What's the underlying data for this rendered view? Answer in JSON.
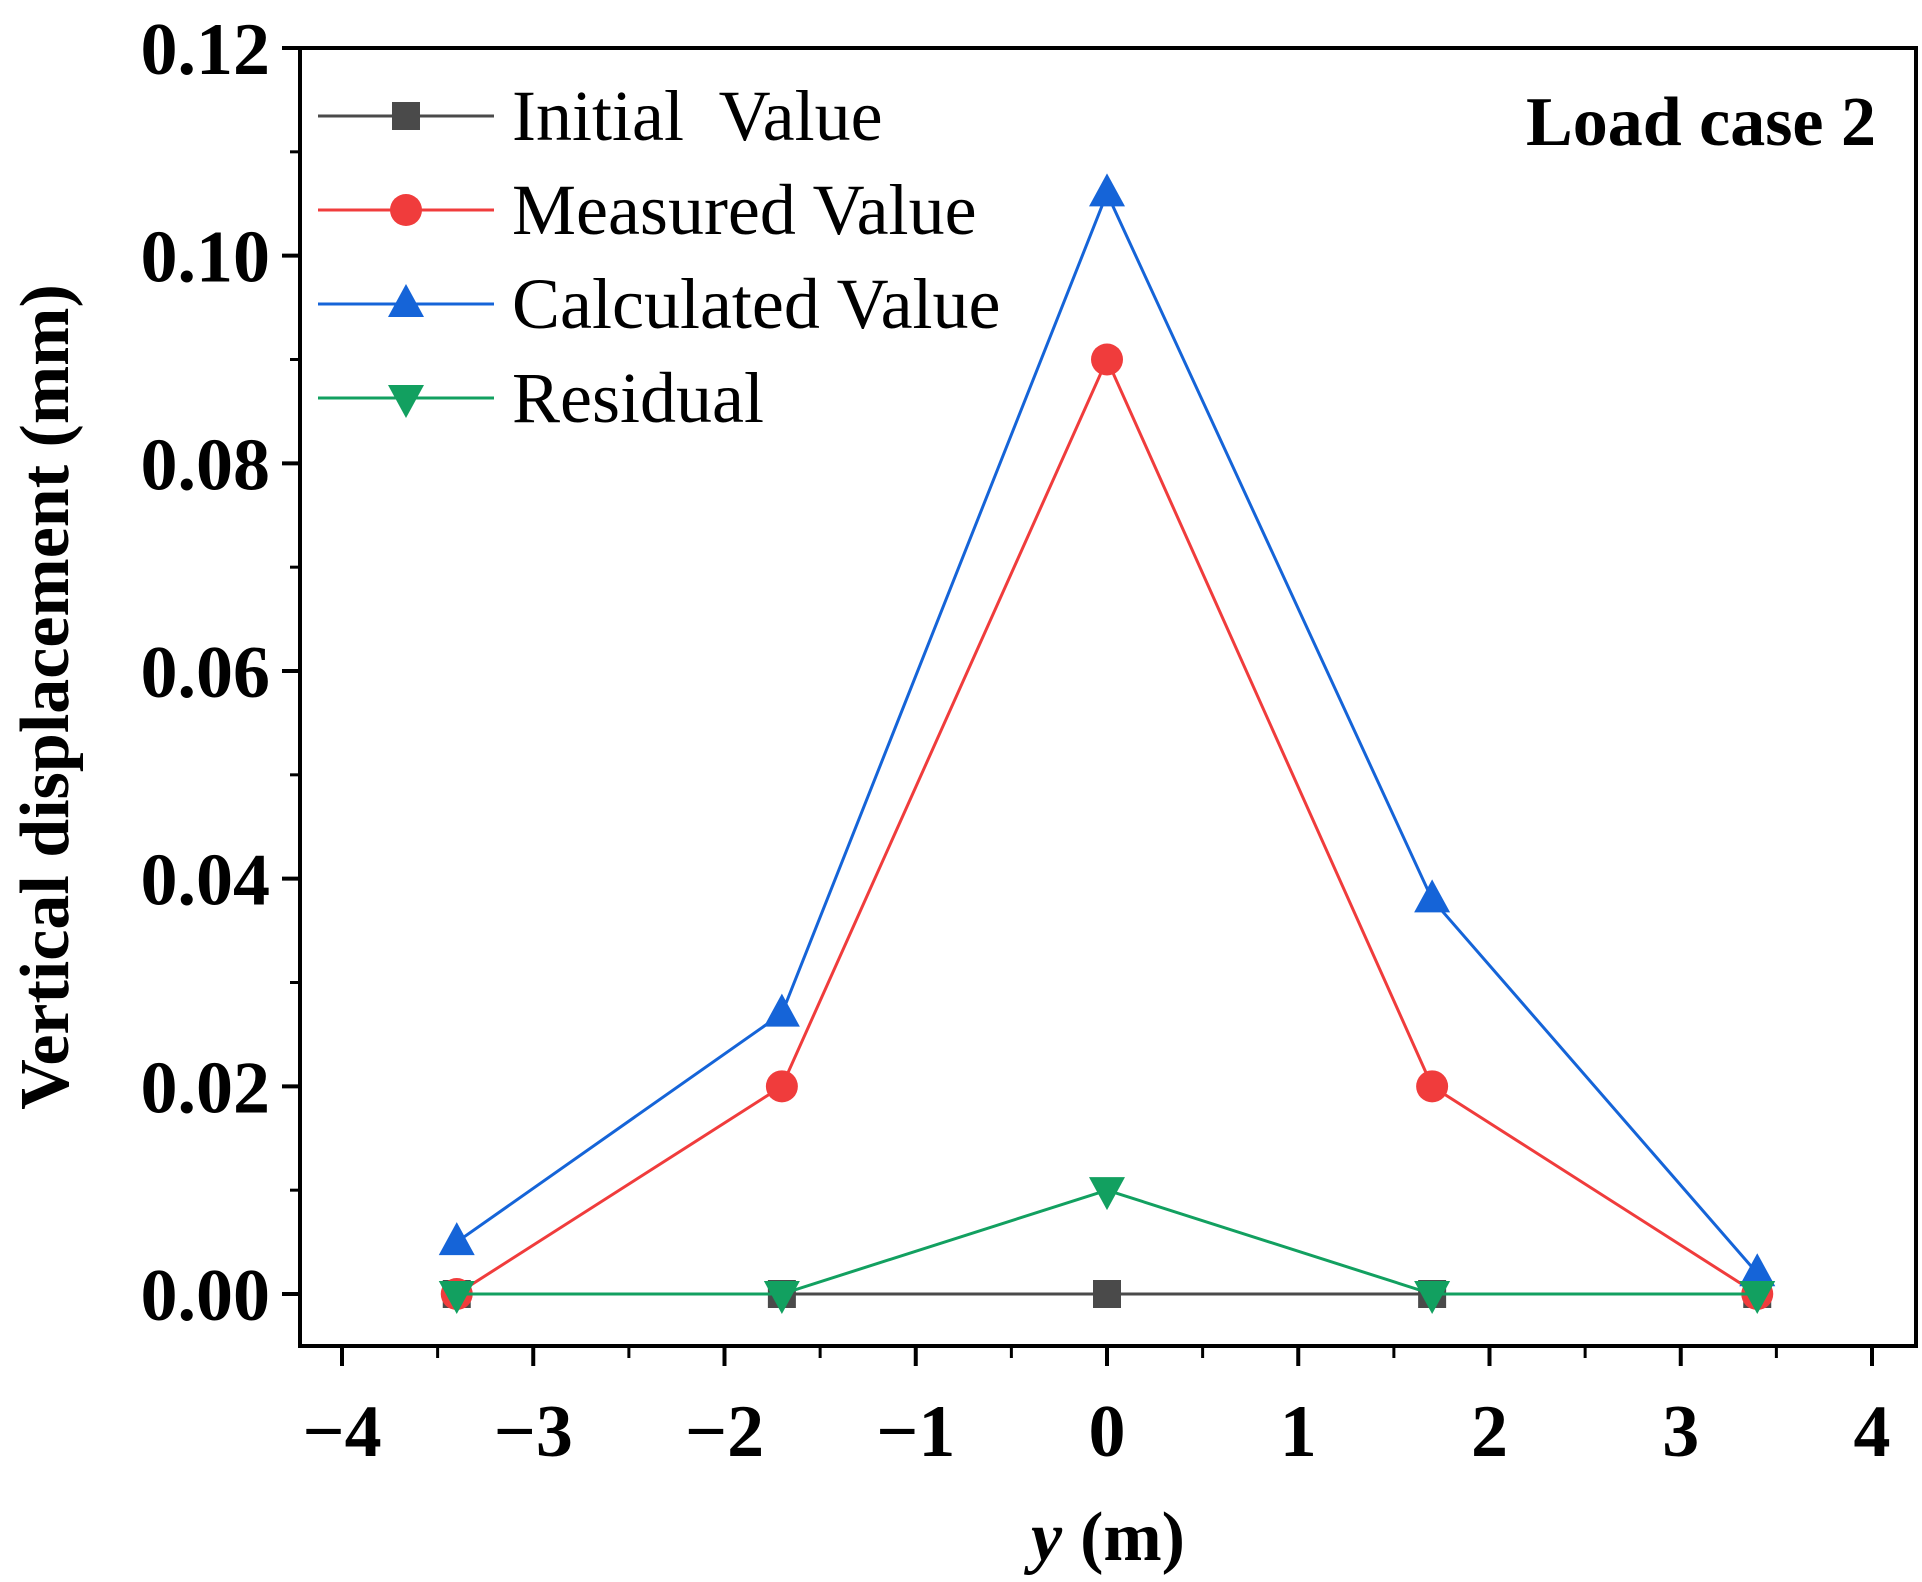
{
  "chart_data": {
    "type": "line",
    "annotation": "Load case 2",
    "xlabel_var": "y",
    "xlabel_unit": "(m)",
    "ylabel": "Vertical displacement (mm)",
    "xlim": [
      -4,
      4
    ],
    "ylim": [
      0,
      0.12
    ],
    "x_ticks": [
      -4,
      -3,
      -2,
      -1,
      0,
      1,
      2,
      3,
      4
    ],
    "x_tick_labels": [
      "−4",
      "−3",
      "−2",
      "−1",
      "0",
      "1",
      "2",
      "3",
      "4"
    ],
    "y_ticks": [
      0,
      0.02,
      0.04,
      0.06,
      0.08,
      0.1,
      0.12
    ],
    "y_tick_labels": [
      "0.00",
      "0.02",
      "0.04",
      "0.06",
      "0.08",
      "0.10",
      "0.12"
    ],
    "x": [
      -3.4,
      -1.7,
      0,
      1.7,
      3.4
    ],
    "series": [
      {
        "name": "Initial  Value",
        "marker": "square",
        "color": "#4a4a4a",
        "values": [
          0,
          0,
          0,
          0,
          0
        ]
      },
      {
        "name": "Measured Value",
        "marker": "circle",
        "color": "#f03c3c",
        "values": [
          0,
          0.02,
          0.09,
          0.02,
          0
        ]
      },
      {
        "name": "Calculated Value",
        "marker": "triangle-up",
        "color": "#1564d8",
        "values": [
          0.005,
          0.027,
          0.106,
          0.038,
          0.002
        ]
      },
      {
        "name": "Residual",
        "marker": "triangle-down",
        "color": "#12a060",
        "values": [
          0,
          0,
          0.01,
          0,
          0
        ]
      }
    ]
  }
}
